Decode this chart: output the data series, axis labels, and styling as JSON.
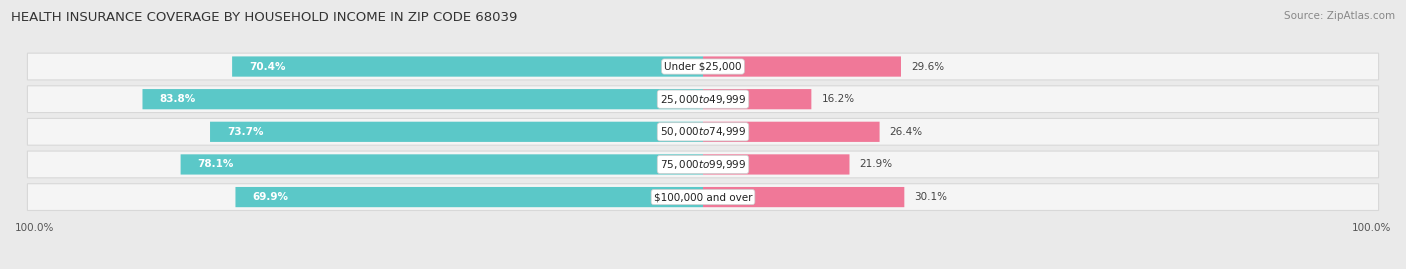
{
  "title": "HEALTH INSURANCE COVERAGE BY HOUSEHOLD INCOME IN ZIP CODE 68039",
  "source": "Source: ZipAtlas.com",
  "categories": [
    "Under $25,000",
    "$25,000 to $49,999",
    "$50,000 to $74,999",
    "$75,000 to $99,999",
    "$100,000 and over"
  ],
  "with_coverage": [
    70.4,
    83.8,
    73.7,
    78.1,
    69.9
  ],
  "without_coverage": [
    29.6,
    16.2,
    26.4,
    21.9,
    30.1
  ],
  "color_with": "#5bc8c8",
  "color_without": "#f07898",
  "bg_color": "#eaeaea",
  "row_bg_color": "#f5f5f5",
  "row_edge_color": "#d8d8d8",
  "title_fontsize": 9.5,
  "label_fontsize": 7.5,
  "tick_fontsize": 7.5,
  "source_fontsize": 7.5,
  "pct_fontsize": 7.5
}
